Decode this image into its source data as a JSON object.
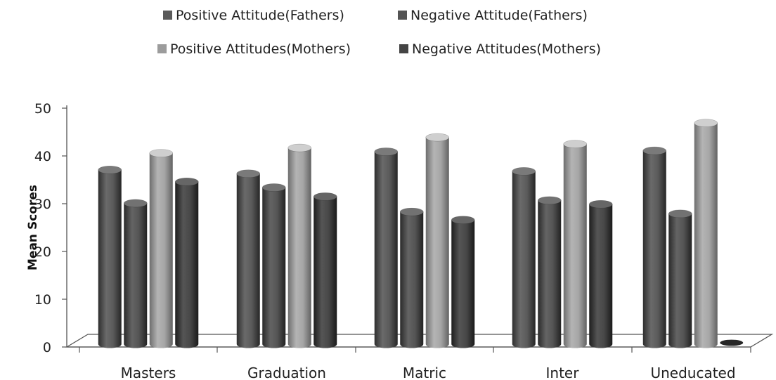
{
  "chart_data": {
    "type": "bar",
    "title": "",
    "xlabel": "",
    "ylabel": "Mean Scores",
    "ylim": [
      0,
      50
    ],
    "yticks": [
      0,
      10,
      20,
      30,
      40,
      50
    ],
    "categories": [
      "Masters",
      "Graduation",
      "Matric",
      "Inter",
      "Uneducated"
    ],
    "series": [
      {
        "name": "Positive Attitude(Fathers)",
        "values": [
          36.5,
          35.7,
          40.3,
          36.2,
          40.5
        ],
        "color": "#5a5a5a"
      },
      {
        "name": "Negative  Attitude(Fathers)",
        "values": [
          29.5,
          32.8,
          27.7,
          30.1,
          27.3
        ],
        "color": "#545454"
      },
      {
        "name": "Positive Attitudes(Mothers)",
        "values": [
          40.0,
          41.1,
          43.3,
          41.9,
          46.3
        ],
        "color": "#9c9c9c"
      },
      {
        "name": "Negative Attitudes(Mothers)",
        "values": [
          34.0,
          30.9,
          26.0,
          29.3,
          0
        ],
        "color": "#444444"
      }
    ],
    "legend_position": "top",
    "grid": false
  }
}
